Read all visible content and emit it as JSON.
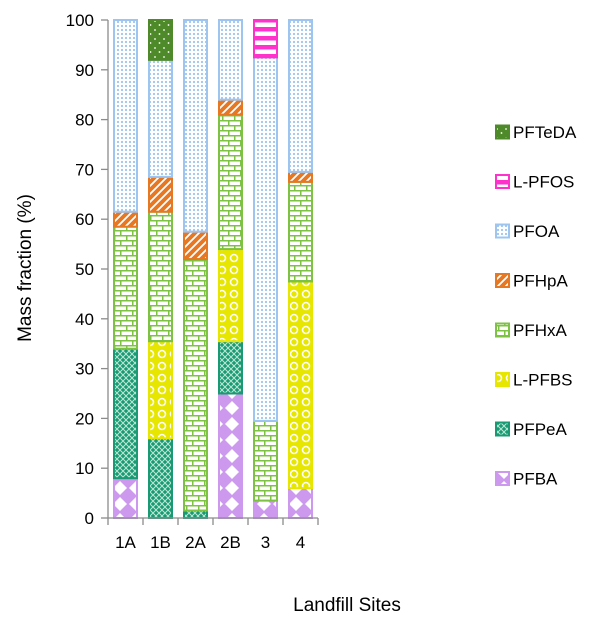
{
  "chart_data": {
    "type": "bar",
    "stacked": true,
    "title": "",
    "xlabel": "Landfill Sites",
    "ylabel": "Mass fraction (%)",
    "ylim": [
      0,
      100
    ],
    "yticks": [
      "0",
      "10",
      "20",
      "30",
      "40",
      "50",
      "60",
      "70",
      "80",
      "90",
      "100"
    ],
    "categories": [
      "1A",
      "1B",
      "2A",
      "2B",
      "3",
      "4"
    ],
    "legend_position": "right",
    "grid": false,
    "series": [
      {
        "name": "PFBA",
        "color": "#cc99ee",
        "pattern": "diamonds",
        "values": [
          8,
          0,
          0,
          25,
          3.5,
          6
        ]
      },
      {
        "name": "PFPeA",
        "color": "#1a9a72",
        "pattern": "crosshatch",
        "values": [
          26,
          16,
          1.5,
          10.5,
          0,
          0
        ]
      },
      {
        "name": "L-PFBS",
        "color": "#e6e600",
        "pattern": "circles",
        "values": [
          0,
          19.5,
          0,
          18.5,
          0,
          41.5
        ]
      },
      {
        "name": "PFHxA",
        "color": "#7dc242",
        "pattern": "bricks",
        "values": [
          24.5,
          26,
          50.5,
          27,
          16,
          20
        ]
      },
      {
        "name": "PFHpA",
        "color": "#e87722",
        "pattern": "diagonal",
        "values": [
          3,
          7,
          5.5,
          3,
          0,
          2
        ]
      },
      {
        "name": "PFOA",
        "color": "#9ec4f0",
        "pattern": "dots",
        "values": [
          38.5,
          23.5,
          42.5,
          16,
          73,
          30.5
        ]
      },
      {
        "name": "L-PFOS",
        "color": "#ff33cc",
        "pattern": "hbars",
        "values": [
          0,
          0,
          0,
          0,
          7.5,
          0
        ]
      },
      {
        "name": "PFTeDA",
        "color": "#4f8a2a",
        "pattern": "sparkle",
        "values": [
          0,
          8,
          0,
          0,
          0,
          0
        ]
      }
    ]
  }
}
